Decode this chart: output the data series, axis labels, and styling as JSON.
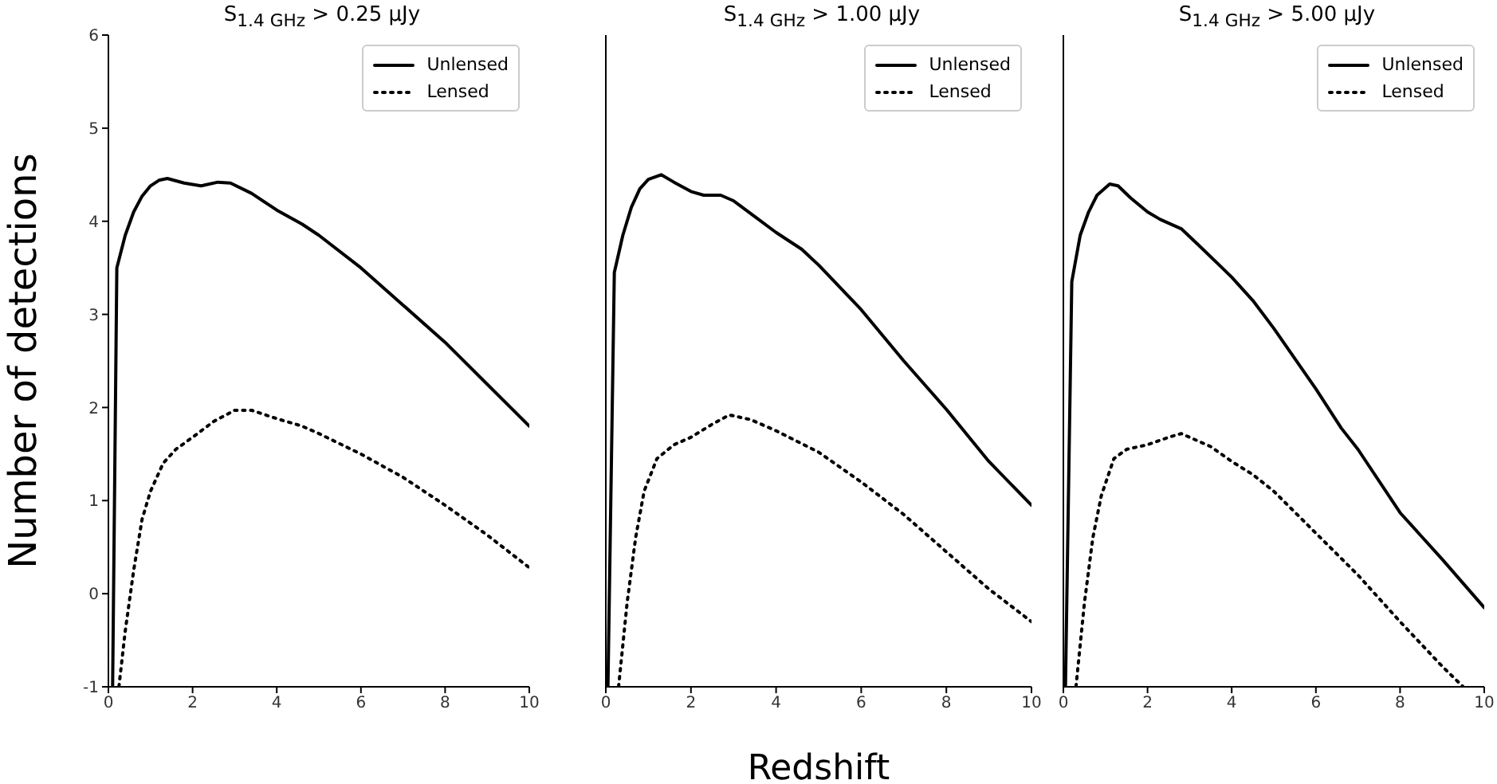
{
  "chart_data": [
    {
      "type": "line",
      "title": "S$_{1.4 GHz}$ > 0.25 μJy",
      "ylabel": "Number of detections",
      "xlim": [
        0,
        10
      ],
      "ylim": [
        -1,
        6
      ],
      "xticks": [
        0,
        2,
        4,
        6,
        8,
        10
      ],
      "yticks": [
        -1,
        0,
        1,
        2,
        3,
        4,
        5,
        6
      ],
      "grid": false,
      "legend": "top right",
      "series": [
        {
          "name": "Unlensed",
          "color": "#000000",
          "line_style": "solid",
          "x": [
            0.1,
            0.2,
            0.4,
            0.6,
            0.8,
            1.0,
            1.2,
            1.4,
            1.8,
            2.2,
            2.6,
            2.9,
            3.4,
            4,
            4.6,
            5,
            6,
            7,
            8,
            9,
            10
          ],
          "values": [
            -1,
            3.5,
            3.85,
            4.1,
            4.27,
            4.38,
            4.44,
            4.46,
            4.41,
            4.38,
            4.42,
            4.41,
            4.3,
            4.12,
            3.97,
            3.85,
            3.5,
            3.1,
            2.7,
            2.25,
            1.8
          ]
        },
        {
          "name": "Lensed",
          "color": "#000000",
          "line_style": "dotted",
          "x": [
            0.25,
            0.4,
            0.6,
            0.8,
            1.0,
            1.3,
            1.6,
            2,
            2.5,
            3,
            3.4,
            4,
            4.6,
            5,
            6,
            7,
            8,
            9,
            10
          ],
          "values": [
            -1,
            -0.4,
            0.25,
            0.8,
            1.1,
            1.4,
            1.55,
            1.68,
            1.85,
            1.97,
            1.97,
            1.88,
            1.8,
            1.72,
            1.5,
            1.25,
            0.95,
            0.63,
            0.28
          ]
        }
      ]
    },
    {
      "type": "line",
      "title": "S$_{1.4 GHz}$ > 1.00 μJy",
      "xlabel": "Redshift",
      "xlim": [
        0,
        10
      ],
      "ylim": [
        -1,
        6
      ],
      "xticks": [
        0,
        2,
        4,
        6,
        8,
        10
      ],
      "yticks": [
        -1,
        0,
        1,
        2,
        3,
        4,
        5,
        6
      ],
      "tick_labels": "x",
      "grid": false,
      "legend": "top right",
      "series": [
        {
          "name": "Unlensed",
          "color": "#000000",
          "line_style": "solid",
          "x": [
            0.05,
            0.2,
            0.4,
            0.6,
            0.8,
            1.0,
            1.3,
            1.6,
            2,
            2.3,
            2.7,
            3,
            3.5,
            4,
            4.6,
            5,
            6,
            7,
            8,
            9,
            10
          ],
          "values": [
            -1,
            3.45,
            3.85,
            4.15,
            4.35,
            4.45,
            4.5,
            4.42,
            4.32,
            4.28,
            4.28,
            4.22,
            4.05,
            3.88,
            3.7,
            3.53,
            3.05,
            2.5,
            1.98,
            1.42,
            0.95
          ]
        },
        {
          "name": "Lensed",
          "color": "#000000",
          "line_style": "dotted",
          "x": [
            0.3,
            0.5,
            0.7,
            0.9,
            1.2,
            1.6,
            2,
            2.5,
            2.9,
            3.4,
            4,
            5,
            6,
            7,
            8,
            9,
            10
          ],
          "values": [
            -1,
            -0.1,
            0.6,
            1.1,
            1.45,
            1.6,
            1.68,
            1.82,
            1.92,
            1.87,
            1.75,
            1.52,
            1.2,
            0.85,
            0.45,
            0.05,
            -0.3
          ]
        }
      ]
    },
    {
      "type": "line",
      "title": "S$_{1.4 GHz}$ > 5.00 μJy",
      "xlim": [
        0,
        10
      ],
      "ylim": [
        -1,
        6
      ],
      "xticks": [
        0,
        2,
        4,
        6,
        8,
        10
      ],
      "yticks": [
        -1,
        0,
        1,
        2,
        3,
        4,
        5,
        6
      ],
      "tick_labels": "x",
      "grid": false,
      "legend": "top right",
      "series": [
        {
          "name": "Unlensed",
          "color": "#000000",
          "line_style": "solid",
          "x": [
            0.05,
            0.2,
            0.4,
            0.6,
            0.8,
            1.1,
            1.3,
            1.6,
            2,
            2.3,
            2.8,
            3.2,
            4,
            4.5,
            5,
            6,
            6.6,
            7,
            8,
            9,
            10
          ],
          "values": [
            -1,
            3.35,
            3.85,
            4.1,
            4.28,
            4.4,
            4.38,
            4.25,
            4.1,
            4.02,
            3.92,
            3.75,
            3.4,
            3.15,
            2.85,
            2.2,
            1.78,
            1.55,
            0.87,
            0.37,
            -0.15
          ]
        },
        {
          "name": "Lensed",
          "color": "#000000",
          "line_style": "dotted",
          "x": [
            0.3,
            0.5,
            0.7,
            0.9,
            1.2,
            1.5,
            2,
            2.5,
            2.8,
            3.5,
            4,
            4.5,
            5,
            6,
            7,
            8,
            9,
            9.5
          ],
          "values": [
            -1,
            -0.1,
            0.6,
            1.05,
            1.45,
            1.55,
            1.6,
            1.68,
            1.72,
            1.58,
            1.42,
            1.28,
            1.1,
            0.65,
            0.2,
            -0.3,
            -0.78,
            -1
          ]
        }
      ]
    }
  ]
}
